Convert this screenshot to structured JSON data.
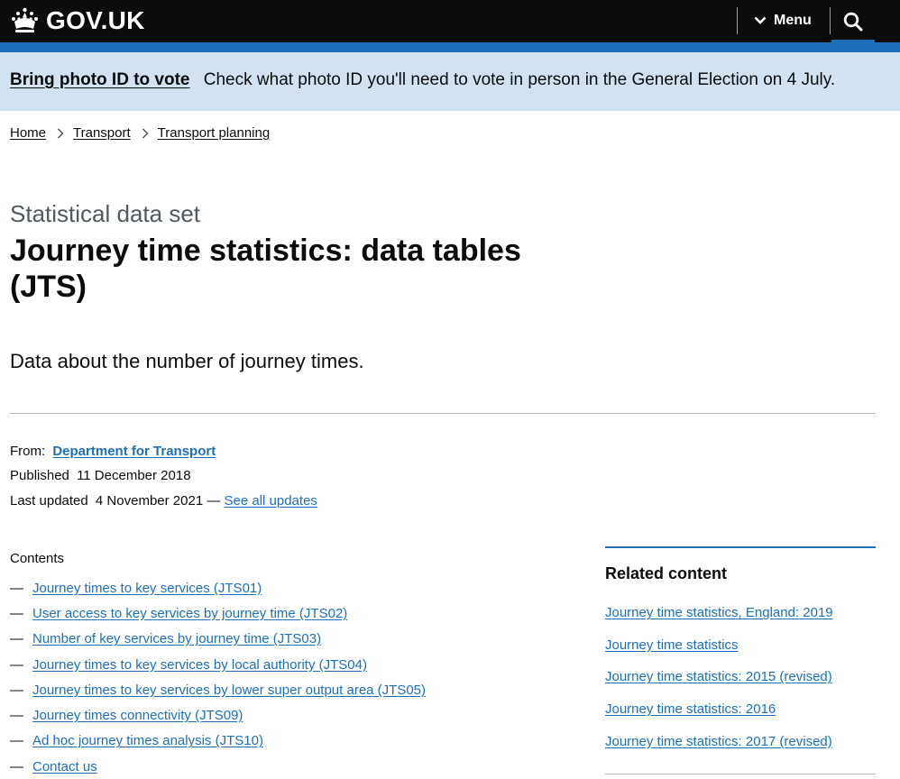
{
  "header": {
    "logo_text": "GOV.UK",
    "menu_label": "Menu"
  },
  "banner": {
    "link": "Bring photo ID to vote",
    "text": "Check what photo ID you'll need to vote in person in the General Election on 4 July."
  },
  "breadcrumb": [
    {
      "label": "Home"
    },
    {
      "label": "Transport"
    },
    {
      "label": "Transport planning"
    }
  ],
  "page": {
    "caption": "Statistical data set",
    "title": "Journey time statistics: data tables (JTS)",
    "lead": "Data about the number of journey times."
  },
  "meta": {
    "from_label": "From:",
    "from_value": "Department for Transport",
    "published_label": "Published",
    "published_value": "11 December 2018",
    "updated_label": "Last updated",
    "updated_value": "4 November 2021 —",
    "see_all": "See all updates"
  },
  "contents": {
    "title": "Contents",
    "dash": "—",
    "items": [
      "Journey times to key services (JTS01)",
      "User access to key services by journey time (JTS02)",
      "Number of key services by journey time (JTS03)",
      "Journey times to key services by local authority (JTS04)",
      "Journey times to key services by lower super output area (JTS05)",
      "Journey times connectivity (JTS09)",
      "Ad hoc journey times analysis (JTS10)",
      "Contact us"
    ]
  },
  "related": {
    "title": "Related content",
    "items": [
      "Journey time statistics, England: 2019",
      "Journey time statistics",
      "Journey time statistics: 2015 (revised)",
      "Journey time statistics: 2016",
      "Journey time statistics: 2017 (revised)"
    ]
  },
  "colors": {
    "header_bg": "#0b0c0c",
    "brand_blue": "#1d70b8",
    "banner_bg": "#d2e2f1",
    "link": "#1d70b8"
  }
}
